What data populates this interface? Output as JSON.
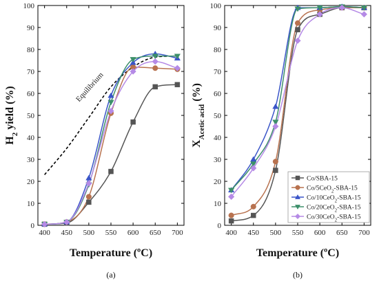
{
  "colors": {
    "Co/SBA-15": "#555555",
    "Co/5CeO2-SBA-15": "#b8724f",
    "Co/10CeO2-SBA-15": "#3a55c8",
    "Co/20CeO2-SBA-15": "#3c8f6a",
    "Co/30CeO2-SBA-15": "#b58ae6"
  },
  "chart_data": [
    {
      "type": "scatter",
      "panel_label": "(a)",
      "xlabel": "Temperature (ºC)",
      "ylabel_main": "H",
      "ylabel_sub": "2",
      "ylabel_rest": " yield (%)",
      "xlim": [
        385,
        715
      ],
      "ylim": [
        0,
        100
      ],
      "xticks": [
        400,
        450,
        500,
        550,
        600,
        650,
        700
      ],
      "yticks": [
        0,
        10,
        20,
        30,
        40,
        50,
        60,
        70,
        80,
        90,
        100
      ],
      "annotation": "Equilibrium",
      "equilibrium": {
        "x": [
          400,
          450,
          500,
          550,
          600,
          650,
          700
        ],
        "y": [
          23,
          35,
          49,
          63,
          72,
          76.5,
          77
        ]
      },
      "series": [
        {
          "name": "Co/SBA-15",
          "marker": "square",
          "x": [
            400,
            450,
            500,
            550,
            600,
            650,
            700
          ],
          "y": [
            0.5,
            1,
            10.5,
            24.5,
            47,
            63,
            64
          ]
        },
        {
          "name": "Co/5CeO2-SBA-15",
          "marker": "circle",
          "x": [
            400,
            450,
            500,
            550,
            600,
            650,
            700
          ],
          "y": [
            0.5,
            1.5,
            13,
            51,
            72,
            71.5,
            71
          ]
        },
        {
          "name": "Co/10CeO2-SBA-15",
          "marker": "triangle-up",
          "x": [
            400,
            450,
            500,
            550,
            600,
            650,
            700
          ],
          "y": [
            0.5,
            1.5,
            21.5,
            59,
            74,
            78,
            76
          ]
        },
        {
          "name": "Co/20CeO2-SBA-15",
          "marker": "triangle-down",
          "x": [
            400,
            450,
            500,
            550,
            600,
            650,
            700
          ],
          "y": [
            0.5,
            1.5,
            18.5,
            56,
            75.5,
            77,
            77
          ]
        },
        {
          "name": "Co/30CeO2-SBA-15",
          "marker": "diamond",
          "x": [
            400,
            450,
            500,
            550,
            600,
            650,
            700
          ],
          "y": [
            0.5,
            1.5,
            19,
            52,
            70,
            74.5,
            71.5
          ]
        }
      ]
    },
    {
      "type": "scatter",
      "panel_label": "(b)",
      "xlabel": "Temperature (ºC)",
      "ylabel_main": "X",
      "ylabel_sub": "Acetic acid",
      "ylabel_rest": " (%)",
      "xlim": [
        385,
        715
      ],
      "ylim": [
        0,
        100
      ],
      "xticks": [
        400,
        450,
        500,
        550,
        600,
        650,
        700
      ],
      "yticks": [
        0,
        10,
        20,
        30,
        40,
        50,
        60,
        70,
        80,
        90,
        100
      ],
      "legend_position": "bottom-right",
      "series": [
        {
          "name": "Co/SBA-15",
          "label_html_prefix": "Co/SBA-15",
          "marker": "square",
          "x": [
            400,
            450,
            500,
            550,
            600,
            650,
            700
          ],
          "y": [
            2,
            4.5,
            25,
            89,
            96,
            99,
            99
          ]
        },
        {
          "name": "Co/5CeO2-SBA-15",
          "marker": "circle",
          "x": [
            400,
            450,
            500,
            550,
            600,
            650,
            700
          ],
          "y": [
            4.5,
            8.5,
            29,
            92,
            98,
            99,
            99
          ]
        },
        {
          "name": "Co/10CeO2-SBA-15",
          "marker": "triangle-up",
          "x": [
            400,
            450,
            500,
            550,
            600,
            650,
            700
          ],
          "y": [
            16,
            30,
            54,
            99,
            99,
            99.5,
            99
          ]
        },
        {
          "name": "Co/20CeO2-SBA-15",
          "marker": "triangle-down",
          "x": [
            400,
            450,
            500,
            550,
            600,
            650,
            700
          ],
          "y": [
            16,
            28,
            47,
            98.5,
            99,
            99.5,
            99
          ]
        },
        {
          "name": "Co/30CeO2-SBA-15",
          "marker": "diamond",
          "x": [
            400,
            450,
            500,
            550,
            600,
            650,
            700
          ],
          "y": [
            13,
            26,
            45,
            84,
            96,
            99,
            96
          ]
        }
      ]
    }
  ]
}
